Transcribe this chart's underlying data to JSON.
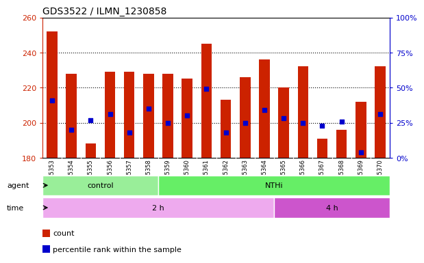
{
  "title": "GDS3522 / ILMN_1230858",
  "samples": [
    "GSM345353",
    "GSM345354",
    "GSM345355",
    "GSM345356",
    "GSM345357",
    "GSM345358",
    "GSM345359",
    "GSM345360",
    "GSM345361",
    "GSM345362",
    "GSM345363",
    "GSM345364",
    "GSM345365",
    "GSM345366",
    "GSM345367",
    "GSM345368",
    "GSM345369",
    "GSM345370"
  ],
  "bar_tops": [
    252,
    228,
    188,
    229,
    229,
    228,
    228,
    225,
    245,
    213,
    226,
    236,
    220,
    232,
    191,
    196,
    212,
    232
  ],
  "percentile_pct": [
    41,
    20,
    27,
    31,
    18,
    35,
    25,
    30,
    49,
    18,
    25,
    34,
    28,
    25,
    23,
    26,
    4,
    31
  ],
  "ylim_left": [
    180,
    260
  ],
  "ylim_right": [
    0,
    100
  ],
  "yticks_left": [
    180,
    200,
    220,
    240,
    260
  ],
  "yticks_right": [
    0,
    25,
    50,
    75,
    100
  ],
  "agent_groups": [
    {
      "label": "control",
      "start": 0,
      "end": 6,
      "color": "#99ee99"
    },
    {
      "label": "NTHi",
      "start": 6,
      "end": 18,
      "color": "#66ee66"
    }
  ],
  "time_groups": [
    {
      "label": "2 h",
      "start": 0,
      "end": 12,
      "color": "#eeaaee"
    },
    {
      "label": "4 h",
      "start": 12,
      "end": 18,
      "color": "#cc55cc"
    }
  ],
  "bar_bottom": 180,
  "bar_color": "#cc2200",
  "dot_color": "#0000cc",
  "bar_width": 0.55,
  "left_tick_color": "#cc2200",
  "right_tick_color": "#0000cc",
  "xtick_bg": "#d8d8d8",
  "legend_items": [
    {
      "color": "#cc2200",
      "label": "count"
    },
    {
      "color": "#0000cc",
      "label": "percentile rank within the sample"
    }
  ]
}
